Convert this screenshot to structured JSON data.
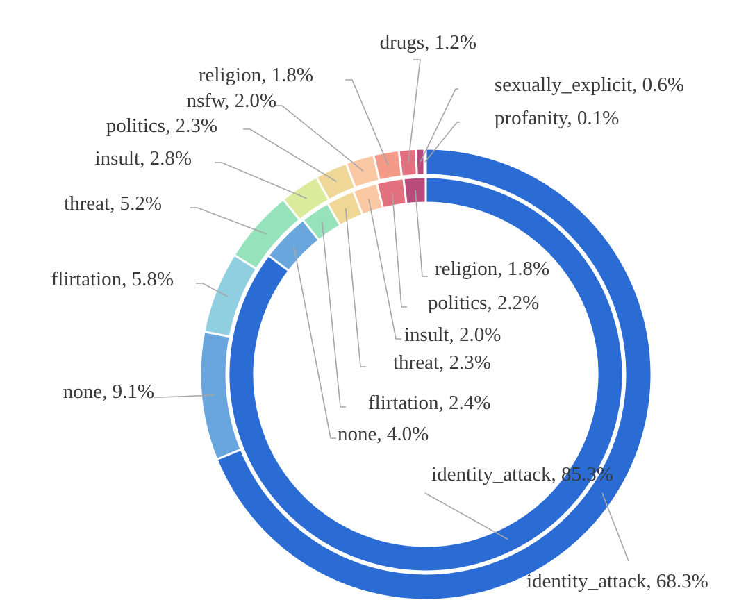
{
  "chart_data": {
    "type": "pie",
    "title": "",
    "rings": [
      {
        "name": "",
        "position": "outer",
        "slices": [
          {
            "label": "identity_attack",
            "value": 68.3,
            "display": "identity_attack, 68.3%",
            "color": "#2b6cd4"
          },
          {
            "label": "none",
            "value": 9.1,
            "display": "none, 9.1%",
            "color": "#6aa6de"
          },
          {
            "label": "flirtation",
            "value": 5.8,
            "display": "flirtation, 5.8%",
            "color": "#8fcfe0"
          },
          {
            "label": "threat",
            "value": 5.2,
            "display": "threat, 5.2%",
            "color": "#96e3bb"
          },
          {
            "label": "insult",
            "value": 2.8,
            "display": "insult, 2.8%",
            "color": "#dceb9b"
          },
          {
            "label": "politics",
            "value": 2.3,
            "display": "politics, 2.3%",
            "color": "#efd897"
          },
          {
            "label": "nsfw",
            "value": 2.0,
            "display": "nsfw, 2.0%",
            "color": "#fbc8a4"
          },
          {
            "label": "religion",
            "value": 1.8,
            "display": "religion, 1.8%",
            "color": "#f49a88"
          },
          {
            "label": "drugs",
            "value": 1.2,
            "display": "drugs, 1.2%",
            "color": "#e2707f"
          },
          {
            "label": "sexually_explicit",
            "value": 0.6,
            "display": "sexually_explicit, 0.6%",
            "color": "#b84a7c"
          },
          {
            "label": "profanity",
            "value": 0.1,
            "display": "profanity, 0.1%",
            "color": "#8a3a6e"
          }
        ]
      },
      {
        "name": "",
        "position": "inner",
        "slices": [
          {
            "label": "identity_attack",
            "value": 85.3,
            "display": "identity_attack, 85.3%",
            "color": "#2b6cd4"
          },
          {
            "label": "none",
            "value": 4.0,
            "display": "none, 4.0%",
            "color": "#6aa6de"
          },
          {
            "label": "flirtation",
            "value": 2.4,
            "display": "flirtation, 2.4%",
            "color": "#96e3bb"
          },
          {
            "label": "threat",
            "value": 2.3,
            "display": "threat, 2.3%",
            "color": "#efd897"
          },
          {
            "label": "insult",
            "value": 2.0,
            "display": "insult, 2.0%",
            "color": "#fbc8a4"
          },
          {
            "label": "politics",
            "value": 2.2,
            "display": "politics, 2.2%",
            "color": "#e2707f"
          },
          {
            "label": "religion",
            "value": 1.8,
            "display": "religion, 1.8%",
            "color": "#b84a7c"
          }
        ]
      }
    ]
  }
}
